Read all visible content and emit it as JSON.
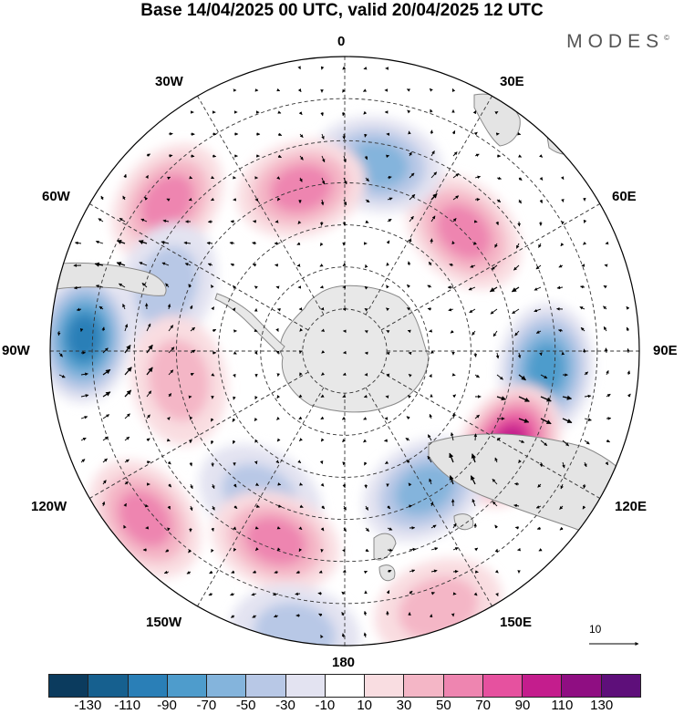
{
  "title": "Base 14/04/2025 00 UTC, valid 20/04/2025 12 UTC",
  "logo": "MODES",
  "logo_mark": "©",
  "longitude_labels": [
    "0",
    "30E",
    "60E",
    "90E",
    "120E",
    "150E",
    "180",
    "150W",
    "120W",
    "90W",
    "60W",
    "30W"
  ],
  "reference_vector": {
    "value": "10"
  },
  "colorbar": {
    "ticks": [
      "-130",
      "-110",
      "-90",
      "-70",
      "-50",
      "-30",
      "-10",
      "10",
      "30",
      "50",
      "70",
      "90",
      "110",
      "130"
    ],
    "colors": [
      "#0b3b5e",
      "#16608f",
      "#2a7fb7",
      "#4e9ccc",
      "#84b4dc",
      "#b8c8e6",
      "#e3e3f1",
      "#ffffff",
      "#f9dde1",
      "#f4b6c6",
      "#ee85b0",
      "#e6519f",
      "#c41d8d",
      "#8f0e82",
      "#5e0f7a"
    ]
  },
  "anomaly_centers": [
    {
      "lon": 45,
      "lat": -50,
      "value": 75
    },
    {
      "lon": 10,
      "lat": -45,
      "value": -65
    },
    {
      "lon": -15,
      "lat": -50,
      "value": 60
    },
    {
      "lon": -50,
      "lat": -35,
      "value": 65
    },
    {
      "lon": -70,
      "lat": -45,
      "value": -40
    },
    {
      "lon": -87,
      "lat": -28,
      "value": -100
    },
    {
      "lon": -100,
      "lat": -50,
      "value": 50
    },
    {
      "lon": -130,
      "lat": -28,
      "value": 70
    },
    {
      "lon": -150,
      "lat": -50,
      "value": -40
    },
    {
      "lon": 95,
      "lat": -42,
      "value": -95
    },
    {
      "lon": 120,
      "lat": -45,
      "value": 110
    },
    {
      "lon": 150,
      "lat": -52,
      "value": -70
    },
    {
      "lon": -160,
      "lat": -42,
      "value": 60
    },
    {
      "lon": 160,
      "lat": -25,
      "value": 50
    },
    {
      "lon": -170,
      "lat": -22,
      "value": -45
    }
  ]
}
